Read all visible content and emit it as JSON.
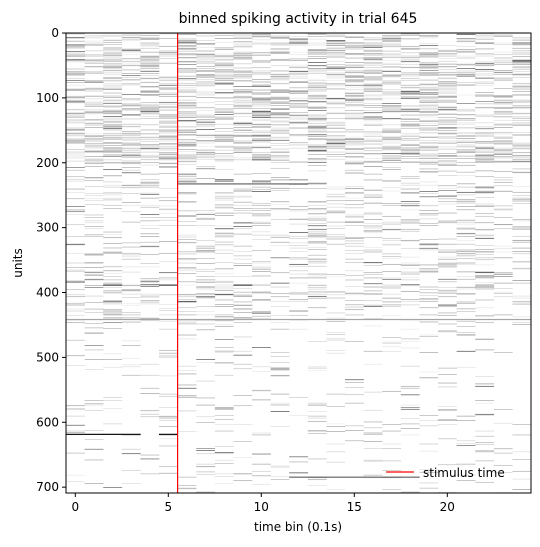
{
  "chart_data": {
    "type": "heatmap",
    "title": "binned spiking activity in trial 645",
    "xlabel": "time bin (0.1s)",
    "ylabel": "units",
    "xlim": [
      -0.5,
      24.5
    ],
    "ylim": [
      709,
      0
    ],
    "x_ticks": [
      0,
      5,
      10,
      15,
      20
    ],
    "y_ticks": [
      0,
      100,
      200,
      300,
      400,
      500,
      600,
      700
    ],
    "n_time_bins": 25,
    "n_units": 709,
    "colormap": "gray_r",
    "colors": {
      "stimulus_line": "#ff0000",
      "background": "#ffffff"
    },
    "stimulus_line": {
      "x": 5.5,
      "label": "stimulus time"
    },
    "legend": {
      "entries": [
        "stimulus time"
      ],
      "placement": "lower-right"
    },
    "notable_rows": [
      {
        "unit": 441,
        "bins": "all",
        "intensity": 0.35
      },
      {
        "unit": 618,
        "bins": [
          0,
          1,
          2,
          3,
          5
        ],
        "intensity": 0.95
      },
      {
        "unit": 388,
        "bins": [
          2,
          5,
          9
        ],
        "intensity": 0.75
      },
      {
        "unit": 232,
        "bins": [
          6,
          7,
          8,
          9,
          10,
          11,
          12
        ],
        "intensity": 0.6
      },
      {
        "unit": 684,
        "bins": [
          12,
          13,
          14,
          15,
          16,
          17,
          18
        ],
        "intensity": 0.6
      }
    ],
    "activity_density_profile": [
      {
        "unit_from": 0,
        "unit_to": 200,
        "density": 0.35
      },
      {
        "unit_from": 200,
        "unit_to": 450,
        "density": 0.16
      },
      {
        "unit_from": 450,
        "unit_to": 709,
        "density": 0.05
      }
    ]
  }
}
